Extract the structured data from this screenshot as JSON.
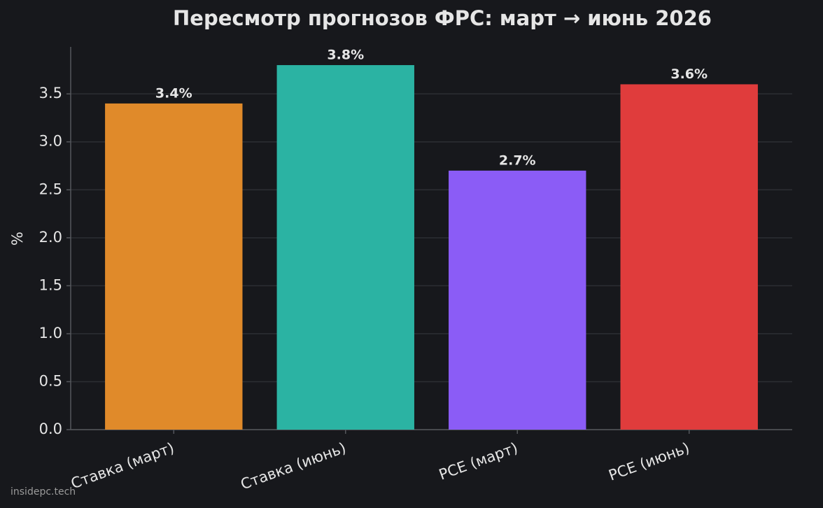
{
  "chart_data": {
    "type": "bar",
    "title": "Пересмотр прогнозов ФРС: март → июнь 2026",
    "ylabel": "%",
    "categories": [
      "Ставка (март)",
      "Ставка (июнь)",
      "PCE (март)",
      "PCE (июнь)"
    ],
    "values": [
      3.4,
      3.8,
      2.7,
      3.6
    ],
    "value_labels": [
      "3.4%",
      "3.8%",
      "2.7%",
      "3.6%"
    ],
    "colors": [
      "#e08a2a",
      "#2bb3a3",
      "#8b5cf6",
      "#e03c3c"
    ],
    "ylim": [
      0,
      3.99
    ],
    "yticks": [
      {
        "value": 0,
        "label": "0.0"
      },
      0.5,
      {
        "value": 1,
        "label": "1.0"
      },
      1.5,
      {
        "value": 2,
        "label": "2.0"
      },
      2.5,
      {
        "value": 3,
        "label": "3.0"
      },
      3.5
    ],
    "grid": true
  },
  "watermark": "insidepc.tech"
}
